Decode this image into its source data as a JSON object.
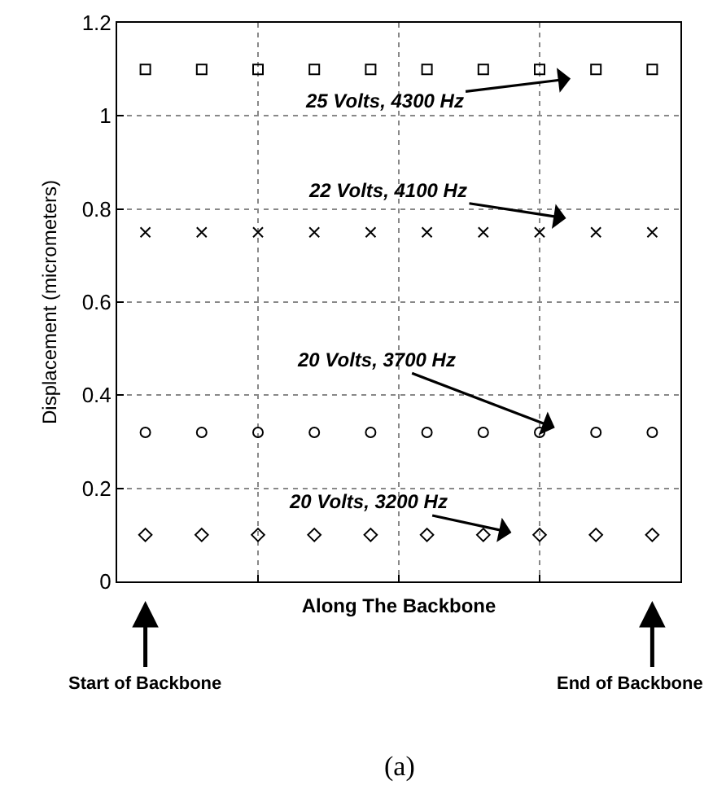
{
  "chart_data": {
    "type": "scatter",
    "ylabel": "Displacement (micrometers)",
    "xlabel": "Along The Backbone",
    "categories": [
      null,
      null,
      null,
      null,
      null,
      null,
      null,
      null,
      null,
      null
    ],
    "series": [
      {
        "color": "#000000",
        "marker": "square",
        "values": [
          1.1,
          1.1,
          1.1,
          1.1,
          1.1,
          1.1,
          1.1,
          1.1,
          1.1,
          1.1
        ]
      },
      {
        "color": "#000000",
        "marker": "cross",
        "values": [
          0.75,
          0.75,
          0.75,
          0.75,
          0.75,
          0.75,
          0.75,
          0.75,
          0.75,
          0.75
        ]
      },
      {
        "color": "#000000",
        "marker": "circle",
        "values": [
          0.32,
          0.32,
          0.32,
          0.32,
          0.32,
          0.32,
          0.32,
          0.32,
          0.32,
          0.32
        ]
      },
      {
        "color": "#000000",
        "marker": "diamond",
        "values": [
          0.1,
          0.1,
          0.1,
          0.1,
          0.1,
          0.1,
          0.1,
          0.1,
          0.1,
          0.1
        ]
      }
    ],
    "ylim": [
      0,
      1.2
    ],
    "yticks": [
      0,
      0.2,
      0.4,
      0.6,
      0.8,
      1,
      1.2
    ],
    "grid": true,
    "tick_labels": "y",
    "annotations": [
      "25 Volts, 4300 Hz",
      "22 Volts, 4100 Hz",
      "20 Volts, 3700 Hz",
      "20 Volts, 3200 Hz",
      "Start of Backbone",
      "End of Backbone",
      "(a)"
    ]
  }
}
